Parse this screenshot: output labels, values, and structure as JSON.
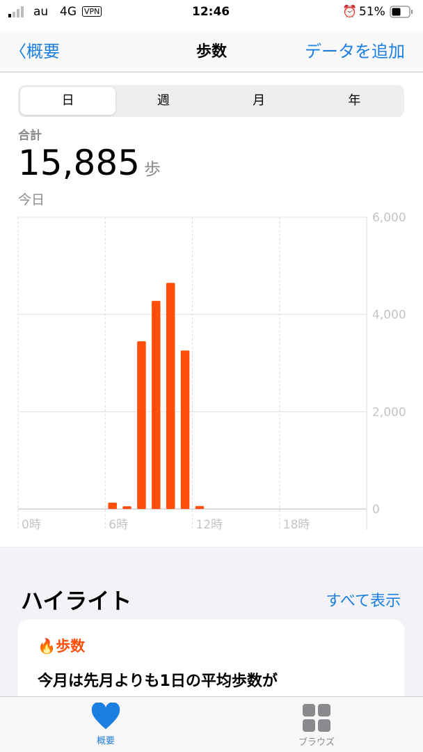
{
  "status": {
    "carrier": "au",
    "network": "4G",
    "vpn": "VPN",
    "time": "12:46",
    "battery": "51%"
  },
  "nav": {
    "back": "概要",
    "title": "歩数",
    "add": "データを追加"
  },
  "segments": [
    "日",
    "週",
    "月",
    "年"
  ],
  "summary": {
    "label": "合計",
    "value": "15,885",
    "unit": "歩",
    "period": "今日"
  },
  "chart_data": {
    "type": "bar",
    "x_ticks": [
      "0時",
      "6時",
      "12時",
      "18時"
    ],
    "y_ticks": [
      "6,000",
      "4,000",
      "2,000",
      "0"
    ],
    "ylim": [
      0,
      6000
    ],
    "hours": [
      6,
      7,
      8,
      9,
      10,
      11,
      12
    ],
    "values": [
      130,
      55,
      3450,
      4280,
      4650,
      3260,
      60
    ],
    "color": "#ff4f0a",
    "grid": true
  },
  "highlights": {
    "title": "ハイライト",
    "show_all": "すべて表示",
    "card_title": "歩数",
    "card_text": "今月は先月よりも1日の平均歩数が"
  },
  "tabs": [
    {
      "label": "概要",
      "icon": "heart-icon",
      "color": "#1a7fe0"
    },
    {
      "label": "ブラウズ",
      "icon": "grid-icon",
      "color": "#8a8a8e"
    }
  ]
}
